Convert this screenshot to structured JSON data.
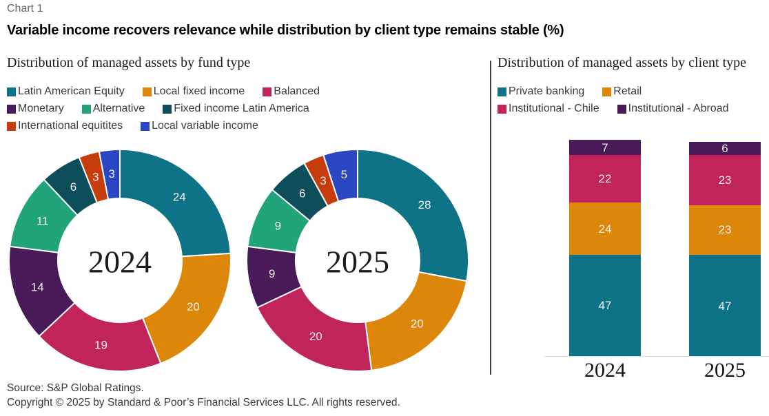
{
  "page": {
    "eyebrow": "Chart 1",
    "title": "Variable income recovers relevance while distribution by client type remains stable (%)",
    "footer": {
      "source": "Source: S&P Global Ratings.",
      "copyright": "Copyright © 2025 by Standard & Poor’s Financial Services LLC. All rights reserved."
    }
  },
  "colors": {
    "teal": "#0e7386",
    "orange": "#dc860a",
    "crimson": "#c0245b",
    "purple": "#481a57",
    "green": "#22a47b",
    "dark_teal": "#0e4d5a",
    "dark_orange": "#c63d0d",
    "blue": "#2a46c3",
    "eyebrow_gray": "#63666a",
    "axis_gray": "#dcdcdc"
  },
  "chart_data": [
    {
      "type": "pie",
      "subtype": "donut",
      "title": "Distribution of managed assets by fund type",
      "legend_position": "top",
      "series_labels": [
        "Latin American Equity",
        "Local fixed income",
        "Balanced",
        "Monetary",
        "Alternative",
        "Fixed income Latin America",
        "International equitites",
        "Local variable income"
      ],
      "colors": [
        "#0e7386",
        "#dc860a",
        "#c0245b",
        "#481a57",
        "#22a47b",
        "#0e4d5a",
        "#c63d0d",
        "#2a46c3"
      ],
      "groups": [
        {
          "label": "2024",
          "values": [
            24,
            20,
            19,
            14,
            11,
            6,
            3,
            3
          ]
        },
        {
          "label": "2025",
          "values": [
            28,
            20,
            20,
            9,
            9,
            6,
            3,
            5
          ]
        }
      ]
    },
    {
      "type": "bar",
      "stacked": true,
      "title": "Distribution of managed assets by client type",
      "legend_position": "top",
      "categories": [
        "2024",
        "2025"
      ],
      "series": [
        {
          "name": "Private banking",
          "color": "#0e7386",
          "values": [
            47,
            47
          ]
        },
        {
          "name": "Retail",
          "color": "#dc860a",
          "values": [
            24,
            23
          ]
        },
        {
          "name": "Institutional - Chile",
          "color": "#c0245b",
          "values": [
            22,
            23
          ]
        },
        {
          "name": "Institutional - Abroad",
          "color": "#481a57",
          "values": [
            7,
            6
          ]
        }
      ],
      "ylim": [
        0,
        100
      ]
    }
  ]
}
